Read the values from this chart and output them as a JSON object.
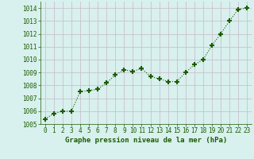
{
  "x": [
    0,
    1,
    2,
    3,
    4,
    5,
    6,
    7,
    8,
    9,
    10,
    11,
    12,
    13,
    14,
    15,
    16,
    17,
    18,
    19,
    20,
    21,
    22,
    23
  ],
  "y": [
    1005.4,
    1005.8,
    1006.0,
    1006.0,
    1007.5,
    1007.6,
    1007.7,
    1008.2,
    1008.8,
    1009.2,
    1009.1,
    1009.3,
    1008.7,
    1008.5,
    1008.3,
    1008.3,
    1009.0,
    1009.6,
    1010.0,
    1011.1,
    1012.0,
    1013.0,
    1013.9,
    1014.0
  ],
  "line_color": "#1a5c00",
  "marker": "+",
  "marker_size": 5,
  "marker_lw": 1.5,
  "bg_color": "#d8f0ee",
  "grid_color": "#c8b8c8",
  "xlabel": "Graphe pression niveau de la mer (hPa)",
  "xlabel_color": "#1a5c00",
  "tick_color": "#1a5c00",
  "ylim": [
    1005.0,
    1014.5
  ],
  "xlim": [
    -0.5,
    23.5
  ],
  "yticks": [
    1005,
    1006,
    1007,
    1008,
    1009,
    1010,
    1011,
    1012,
    1013,
    1014
  ],
  "xticks": [
    0,
    1,
    2,
    3,
    4,
    5,
    6,
    7,
    8,
    9,
    10,
    11,
    12,
    13,
    14,
    15,
    16,
    17,
    18,
    19,
    20,
    21,
    22,
    23
  ],
  "tick_fontsize": 5.5,
  "xlabel_fontsize": 6.5,
  "linewidth": 0.8,
  "line_style": ":"
}
